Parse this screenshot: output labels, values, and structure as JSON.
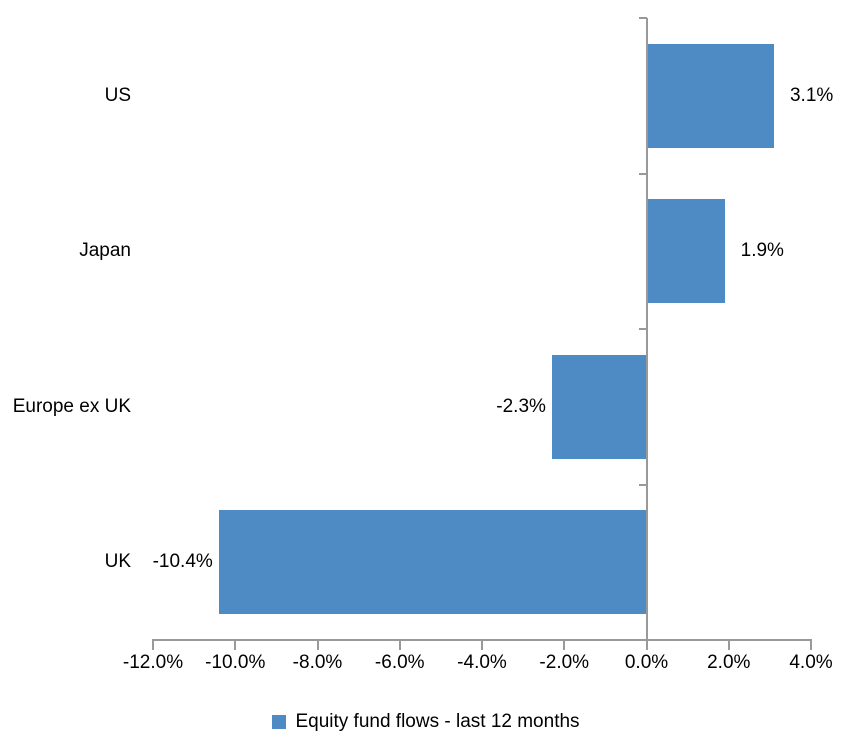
{
  "chart_data": {
    "type": "bar",
    "orientation": "horizontal",
    "categories": [
      "US",
      "Japan",
      "Europe ex UK",
      "UK"
    ],
    "series": [
      {
        "name": "Equity fund flows - last 12 months",
        "values": [
          3.1,
          1.9,
          -2.3,
          -10.4
        ],
        "data_labels": [
          "3.1%",
          "1.9%",
          "-2.3%",
          "-10.4%"
        ],
        "color": "#4E8AC3"
      }
    ],
    "xlim": [
      -12,
      4
    ],
    "x_ticks": [
      -12,
      -10,
      -8,
      -6,
      -4,
      -2,
      0,
      2,
      4
    ],
    "x_tick_labels": [
      "-12.0%",
      "-10.0%",
      "-8.0%",
      "-6.0%",
      "-4.0%",
      "-2.0%",
      "0.0%",
      "2.0%",
      "4.0%"
    ],
    "grid": false,
    "legend_position": "bottom",
    "colors": {
      "bar": "#4E8AC3",
      "axis": "#999999",
      "text": "#000000",
      "background": "#FFFFFF"
    },
    "legend": {
      "label": "Equity fund flows - last 12 months"
    }
  }
}
